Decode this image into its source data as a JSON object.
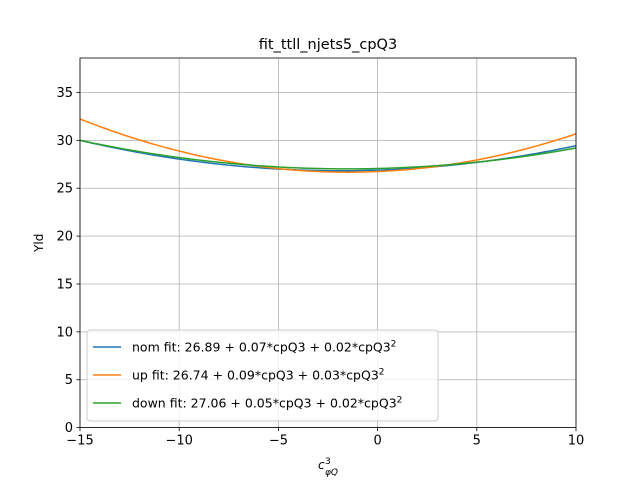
{
  "chart_data": {
    "type": "line",
    "title": "fit_ttll_njets5_cpQ3",
    "xlabel": "c",
    "xlabel_sup": "3",
    "xlabel_sub": "φQ",
    "ylabel": "Yld",
    "xlim": [
      -15,
      10
    ],
    "ylim": [
      0,
      38.6
    ],
    "xticks": [
      -15,
      -10,
      -5,
      0,
      5,
      10
    ],
    "xtick_labels": [
      "−15",
      "−10",
      "−5",
      "0",
      "5",
      "10"
    ],
    "yticks": [
      0,
      5,
      10,
      15,
      20,
      25,
      30,
      35
    ],
    "ytick_labels": [
      "0",
      "5",
      "10",
      "15",
      "20",
      "25",
      "30",
      "35"
    ],
    "grid": true,
    "legend_position": "lower-left",
    "series": [
      {
        "name": "nom fit: 26.89 + 0.07*cpQ3 + 0.02*cpQ3",
        "name_sup": "2",
        "color": "#1f77b4",
        "coefficients": [
          26.89,
          0.07,
          0.0185
        ]
      },
      {
        "name": "up fit: 26.74 + 0.09*cpQ3 + 0.03*cpQ3",
        "name_sup": "2",
        "color": "#ff7f0e",
        "coefficients": [
          26.74,
          0.09,
          0.0304
        ]
      },
      {
        "name": "down fit: 27.06 + 0.05*cpQ3 + 0.02*cpQ3",
        "name_sup": "2",
        "color": "#2ca02c",
        "coefficients": [
          27.06,
          0.05,
          0.0164
        ]
      }
    ]
  }
}
